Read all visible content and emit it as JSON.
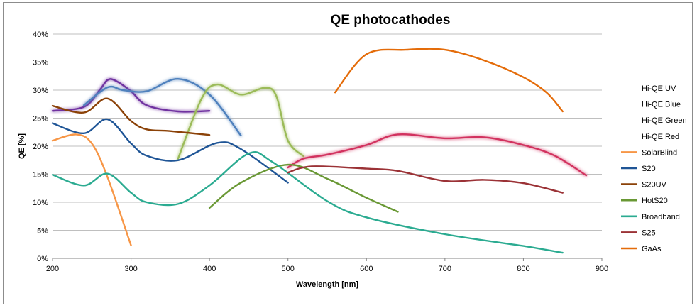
{
  "chart_data": {
    "type": "line",
    "title": "QE photocathodes",
    "xlabel": "Wavelength [nm]",
    "ylabel": "QE [%]",
    "xlim": [
      200,
      900
    ],
    "ylim": [
      0,
      40
    ],
    "x_ticks": [
      "200",
      "300",
      "400",
      "500",
      "600",
      "700",
      "800",
      "900"
    ],
    "y_ticks": [
      "0%",
      "5%",
      "10%",
      "15%",
      "20%",
      "25%",
      "30%",
      "35%",
      "40%"
    ],
    "grid": "horizontal",
    "legend_position": "right",
    "series": [
      {
        "name": "Hi-QE UV",
        "color": "#7030a0",
        "glow": true,
        "x": [
          200,
          240,
          260,
          270,
          280,
          300,
          320,
          360,
          400
        ],
        "y": [
          26.3,
          27.0,
          30.0,
          31.8,
          31.7,
          29.8,
          27.3,
          26.2,
          26.3
        ]
      },
      {
        "name": "Hi-QE Blue",
        "color": "#4f81bd",
        "glow": true,
        "x": [
          240,
          270,
          290,
          320,
          360,
          400,
          440
        ],
        "y": [
          27.3,
          30.5,
          30.0,
          29.8,
          32.0,
          29.2,
          21.9
        ]
      },
      {
        "name": "Hi-QE Green",
        "color": "#9bbb59",
        "glow": true,
        "x": [
          360,
          390,
          410,
          440,
          470,
          485,
          500,
          520
        ],
        "y": [
          17.8,
          28.5,
          31.0,
          29.2,
          30.4,
          29.0,
          21.0,
          18.2
        ]
      },
      {
        "name": "Hi-QE Red",
        "color": "#d2335f",
        "glow": true,
        "x": [
          500,
          520,
          550,
          600,
          640,
          700,
          750,
          800,
          840,
          880
        ],
        "y": [
          16.2,
          17.8,
          18.5,
          20.2,
          22.1,
          21.4,
          21.6,
          20.2,
          18.3,
          14.8
        ]
      },
      {
        "name": "SolarBlind",
        "color": "#f79646",
        "glow": false,
        "x": [
          200,
          230,
          250,
          270,
          300
        ],
        "y": [
          21.0,
          22.1,
          20.5,
          14.5,
          2.3
        ]
      },
      {
        "name": "S20",
        "color": "#1f5596",
        "glow": false,
        "x": [
          200,
          240,
          270,
          300,
          320,
          360,
          410,
          440,
          500
        ],
        "y": [
          24.1,
          22.3,
          24.8,
          20.5,
          18.3,
          17.5,
          20.6,
          19.5,
          13.5
        ]
      },
      {
        "name": "S20UV",
        "color": "#8b4208",
        "glow": false,
        "x": [
          200,
          240,
          270,
          300,
          320,
          350,
          400
        ],
        "y": [
          27.2,
          26.0,
          28.5,
          24.5,
          23.0,
          22.7,
          22.0
        ]
      },
      {
        "name": "HotS20",
        "color": "#699834",
        "glow": false,
        "x": [
          400,
          440,
          500,
          550,
          600,
          640
        ],
        "y": [
          9.0,
          13.5,
          16.7,
          14.2,
          10.8,
          8.3
        ]
      },
      {
        "name": "Broadband",
        "color": "#2bab91",
        "glow": false,
        "x": [
          200,
          240,
          270,
          300,
          320,
          360,
          400,
          450,
          480,
          550,
          600,
          700,
          800,
          850
        ],
        "y": [
          14.9,
          13.0,
          15.1,
          11.7,
          10.0,
          9.7,
          13.0,
          18.7,
          17.2,
          10.2,
          7.3,
          4.3,
          2.2,
          1.0
        ]
      },
      {
        "name": "S25",
        "color": "#9b3236",
        "glow": false,
        "x": [
          500,
          530,
          600,
          640,
          700,
          750,
          800,
          850
        ],
        "y": [
          15.3,
          16.4,
          16.0,
          15.6,
          13.8,
          14.0,
          13.4,
          11.7
        ]
      },
      {
        "name": "GaAs",
        "color": "#e46c0a",
        "glow": false,
        "x": [
          560,
          600,
          650,
          700,
          750,
          800,
          830,
          850
        ],
        "y": [
          29.6,
          36.4,
          37.2,
          37.2,
          35.3,
          32.3,
          29.5,
          26.2
        ]
      }
    ]
  }
}
